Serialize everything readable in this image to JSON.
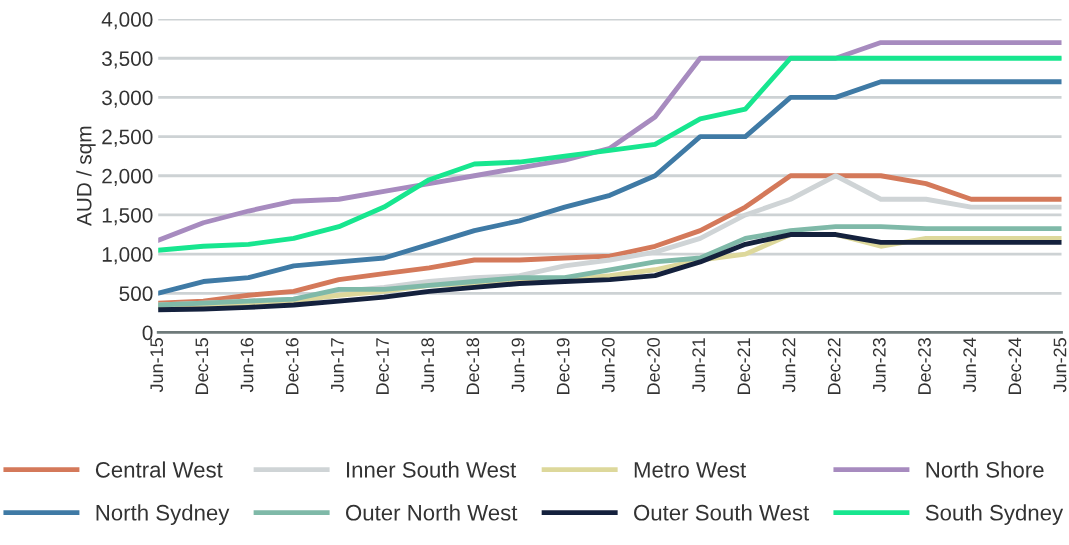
{
  "chart_data": {
    "type": "line",
    "ylabel": "AUD / sqm",
    "categories": [
      "Jun-15",
      "Dec-15",
      "Jun-16",
      "Dec-16",
      "Jun-17",
      "Dec-17",
      "Jun-18",
      "Dec-18",
      "Jun-19",
      "Dec-19",
      "Jun-20",
      "Dec-20",
      "Jun-21",
      "Dec-21",
      "Jun-22",
      "Dec-22",
      "Jun-23",
      "Dec-23",
      "Jun-24",
      "Dec-24",
      "Jun-25"
    ],
    "ylim": [
      0,
      4000
    ],
    "yticks": [
      {
        "value": 0,
        "label": "0"
      },
      {
        "value": 500,
        "label": "500"
      },
      {
        "value": 1000,
        "label": "1,000"
      },
      {
        "value": 1500,
        "label": "1,500"
      },
      {
        "value": 2000,
        "label": "2,000"
      },
      {
        "value": 2500,
        "label": "2,500"
      },
      {
        "value": 3000,
        "label": "3,000"
      },
      {
        "value": 3500,
        "label": "3,500"
      },
      {
        "value": 4000,
        "label": "4,000"
      }
    ],
    "grid": "y",
    "legend": "bottom",
    "marker": "none",
    "line_style": "solid",
    "series": [
      {
        "name": "Central West",
        "color": "#d4795a",
        "values": [
          375,
          400,
          475,
          525,
          675,
          750,
          825,
          925,
          925,
          950,
          975,
          1100,
          1300,
          1600,
          2000,
          2000,
          2000,
          1900,
          1700,
          1700,
          1700
        ]
      },
      {
        "name": "Inner South West",
        "color": "#cfd4d6",
        "values": [
          350,
          375,
          400,
          425,
          525,
          575,
          650,
          700,
          725,
          850,
          925,
          1025,
          1200,
          1500,
          1700,
          2000,
          1700,
          1700,
          1600,
          1600,
          1600
        ]
      },
      {
        "name": "Metro West",
        "color": "#ddd89b",
        "values": [
          325,
          350,
          375,
          400,
          475,
          525,
          600,
          625,
          650,
          675,
          725,
          800,
          925,
          1000,
          1250,
          1250,
          1100,
          1200,
          1200,
          1200,
          1200
        ]
      },
      {
        "name": "North Shore",
        "color": "#a78bbf",
        "values": [
          1175,
          1400,
          1550,
          1675,
          1700,
          1800,
          1900,
          2000,
          2100,
          2200,
          2350,
          2750,
          3500,
          3500,
          3500,
          3500,
          3700,
          3700,
          3700,
          3700,
          3700
        ]
      },
      {
        "name": "North Sydney",
        "color": "#3f7aa5",
        "values": [
          500,
          650,
          700,
          850,
          900,
          950,
          1125,
          1300,
          1425,
          1600,
          1750,
          2000,
          2500,
          2500,
          3000,
          3000,
          3200,
          3200,
          3200,
          3200,
          3200
        ]
      },
      {
        "name": "Outer North West",
        "color": "#7fb9a8",
        "values": [
          350,
          375,
          400,
          425,
          550,
          550,
          600,
          650,
          700,
          700,
          800,
          900,
          950,
          1200,
          1300,
          1350,
          1350,
          1325,
          1325,
          1325,
          1325
        ]
      },
      {
        "name": "Outer South West",
        "color": "#14213d",
        "values": [
          290,
          300,
          320,
          350,
          400,
          450,
          525,
          575,
          625,
          650,
          675,
          725,
          900,
          1125,
          1250,
          1250,
          1150,
          1150,
          1150,
          1150,
          1150
        ]
      },
      {
        "name": "South Sydney",
        "color": "#17e68f",
        "values": [
          1050,
          1100,
          1125,
          1200,
          1350,
          1600,
          1950,
          2150,
          2175,
          2250,
          2325,
          2400,
          2725,
          2850,
          3500,
          3500,
          3500,
          3500,
          3500,
          3500,
          3500
        ]
      }
    ]
  }
}
